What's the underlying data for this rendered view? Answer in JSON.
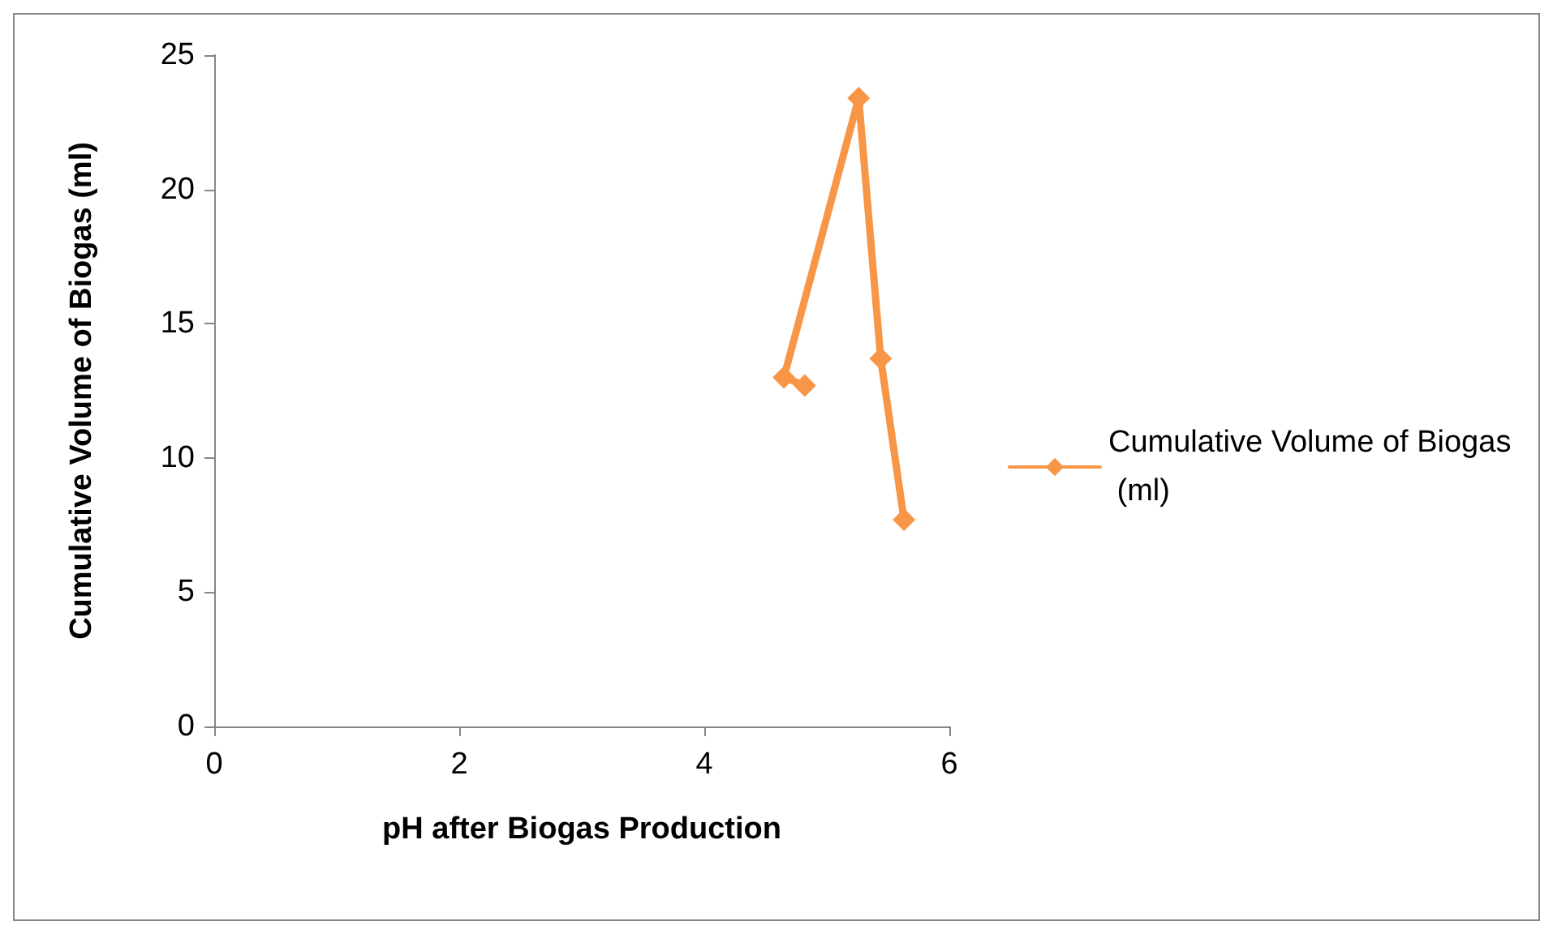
{
  "chart_data": {
    "type": "line",
    "xlabel": "pH after Biogas Production",
    "ylabel": "Cumulative Volume of Biogas (ml)",
    "xlim": [
      0,
      6
    ],
    "xticks": [
      0,
      2,
      4,
      6
    ],
    "ylim": [
      0,
      25
    ],
    "yticks": [
      0,
      5,
      10,
      15,
      20,
      25
    ],
    "grid": false,
    "legend": "right",
    "marker": "diamond",
    "line_style": "solid",
    "series": [
      {
        "name": "Cumulative Volume of Biogas (ml)",
        "color": "#f79646",
        "x": [
          4.82,
          4.65,
          5.26,
          5.44,
          5.63
        ],
        "values": [
          12.7,
          13,
          23.4,
          13.7,
          7.7
        ]
      }
    ]
  }
}
